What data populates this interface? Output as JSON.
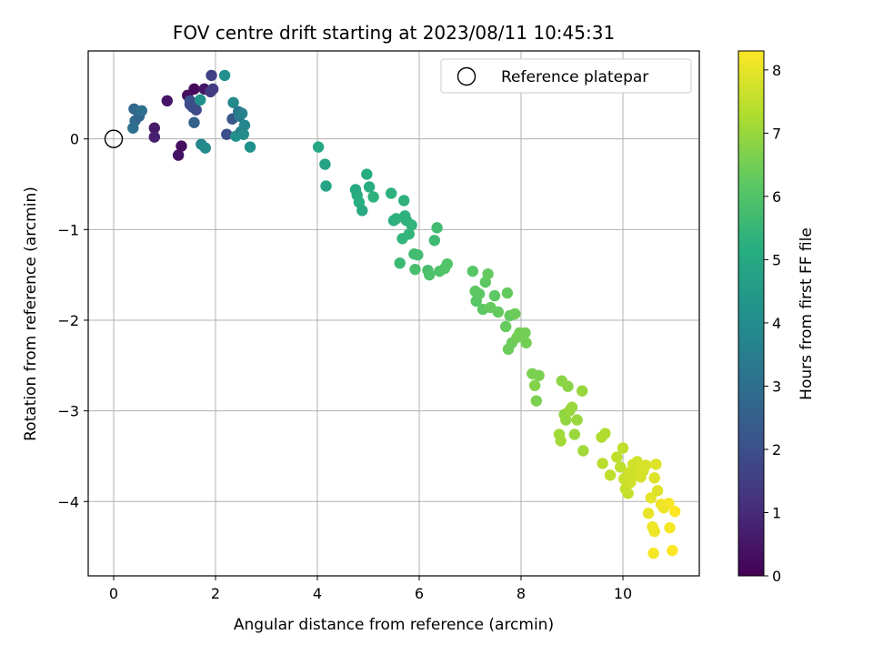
{
  "chart_data": {
    "type": "scatter",
    "title": "FOV centre drift starting at 2023/08/11 10:45:31",
    "xlabel": "Angular distance from reference (arcmin)",
    "ylabel": "Rotation from reference (arcmin)",
    "xlim": [
      -0.5,
      11.5
    ],
    "ylim": [
      -4.82,
      0.97
    ],
    "xticks": [
      0,
      2,
      4,
      6,
      8,
      10
    ],
    "yticks": [
      -4,
      -3,
      -2,
      -1,
      0
    ],
    "grid": true,
    "legend": {
      "location": "upper right",
      "entries": [
        "Reference platepar"
      ]
    },
    "reference_point": {
      "x": 0,
      "y": 0
    },
    "colorbar": {
      "label": "Hours from first FF file",
      "min": 0,
      "max": 8.3,
      "ticks": [
        0,
        1,
        2,
        3,
        4,
        5,
        6,
        7,
        8
      ],
      "colormap": "viridis"
    },
    "points": [
      {
        "x": 1.58,
        "y": 0.55,
        "t": 0.2
      },
      {
        "x": 1.05,
        "y": 0.42,
        "t": 0.5
      },
      {
        "x": 1.27,
        "y": -0.18,
        "t": 0.4
      },
      {
        "x": 1.33,
        "y": -0.08,
        "t": 0.3
      },
      {
        "x": 0.8,
        "y": 0.12,
        "t": 0.6
      },
      {
        "x": 0.8,
        "y": 0.02,
        "t": 0.7
      },
      {
        "x": 1.45,
        "y": 0.48,
        "t": 0.3
      },
      {
        "x": 1.78,
        "y": 0.55,
        "t": 0.5
      },
      {
        "x": 1.9,
        "y": 0.52,
        "t": 1.4
      },
      {
        "x": 1.92,
        "y": 0.7,
        "t": 1.6
      },
      {
        "x": 1.95,
        "y": 0.55,
        "t": 1.5
      },
      {
        "x": 1.5,
        "y": 0.38,
        "t": 1.8
      },
      {
        "x": 1.55,
        "y": 0.35,
        "t": 1.9
      },
      {
        "x": 1.62,
        "y": 0.32,
        "t": 1.9
      },
      {
        "x": 1.58,
        "y": 0.18,
        "t": 2.6
      },
      {
        "x": 1.5,
        "y": 0.42,
        "t": 2.0
      },
      {
        "x": 1.7,
        "y": 0.43,
        "t": 4.2
      },
      {
        "x": 1.72,
        "y": -0.06,
        "t": 3.8
      },
      {
        "x": 1.8,
        "y": -0.1,
        "t": 3.9
      },
      {
        "x": 2.18,
        "y": 0.7,
        "t": 4.1
      },
      {
        "x": 2.22,
        "y": 0.05,
        "t": 2.0
      },
      {
        "x": 2.33,
        "y": 0.22,
        "t": 2.2
      },
      {
        "x": 2.35,
        "y": 0.4,
        "t": 3.9
      },
      {
        "x": 2.4,
        "y": 0.03,
        "t": 4.2
      },
      {
        "x": 2.45,
        "y": 0.3,
        "t": 3.2
      },
      {
        "x": 2.47,
        "y": 0.25,
        "t": 3.3
      },
      {
        "x": 2.5,
        "y": 0.08,
        "t": 3.6
      },
      {
        "x": 2.52,
        "y": 0.28,
        "t": 3.6
      },
      {
        "x": 2.55,
        "y": 0.05,
        "t": 4.0
      },
      {
        "x": 2.57,
        "y": 0.15,
        "t": 3.8
      },
      {
        "x": 2.68,
        "y": -0.09,
        "t": 4.2
      },
      {
        "x": 0.4,
        "y": 0.33,
        "t": 2.8
      },
      {
        "x": 0.42,
        "y": 0.2,
        "t": 2.9
      },
      {
        "x": 0.38,
        "y": 0.12,
        "t": 3.0
      },
      {
        "x": 0.5,
        "y": 0.25,
        "t": 2.7
      },
      {
        "x": 0.55,
        "y": 0.31,
        "t": 3.0
      },
      {
        "x": 4.02,
        "y": -0.09,
        "t": 4.9
      },
      {
        "x": 4.15,
        "y": -0.28,
        "t": 4.8
      },
      {
        "x": 4.17,
        "y": -0.52,
        "t": 4.8
      },
      {
        "x": 4.75,
        "y": -0.56,
        "t": 5.0
      },
      {
        "x": 4.78,
        "y": -0.62,
        "t": 5.1
      },
      {
        "x": 4.82,
        "y": -0.7,
        "t": 5.2
      },
      {
        "x": 4.88,
        "y": -0.79,
        "t": 5.0
      },
      {
        "x": 4.97,
        "y": -0.39,
        "t": 5.1
      },
      {
        "x": 5.02,
        "y": -0.53,
        "t": 5.2
      },
      {
        "x": 5.1,
        "y": -0.64,
        "t": 5.3
      },
      {
        "x": 5.45,
        "y": -0.6,
        "t": 5.3
      },
      {
        "x": 5.5,
        "y": -0.9,
        "t": 5.2
      },
      {
        "x": 5.55,
        "y": -0.88,
        "t": 5.3
      },
      {
        "x": 5.62,
        "y": -1.37,
        "t": 5.6
      },
      {
        "x": 5.67,
        "y": -1.1,
        "t": 5.4
      },
      {
        "x": 5.7,
        "y": -0.68,
        "t": 5.3
      },
      {
        "x": 5.72,
        "y": -0.85,
        "t": 5.3
      },
      {
        "x": 5.75,
        "y": -0.9,
        "t": 5.3
      },
      {
        "x": 5.8,
        "y": -1.05,
        "t": 5.4
      },
      {
        "x": 5.85,
        "y": -0.95,
        "t": 5.4
      },
      {
        "x": 5.9,
        "y": -1.27,
        "t": 5.7
      },
      {
        "x": 5.92,
        "y": -1.44,
        "t": 5.8
      },
      {
        "x": 5.97,
        "y": -1.28,
        "t": 5.7
      },
      {
        "x": 6.17,
        "y": -1.45,
        "t": 5.8
      },
      {
        "x": 6.2,
        "y": -1.5,
        "t": 5.9
      },
      {
        "x": 6.3,
        "y": -1.12,
        "t": 5.6
      },
      {
        "x": 6.35,
        "y": -0.98,
        "t": 5.7
      },
      {
        "x": 6.4,
        "y": -1.46,
        "t": 5.9
      },
      {
        "x": 6.5,
        "y": -1.43,
        "t": 6.0
      },
      {
        "x": 6.55,
        "y": -1.38,
        "t": 6.0
      },
      {
        "x": 7.05,
        "y": -1.46,
        "t": 6.1
      },
      {
        "x": 7.1,
        "y": -1.68,
        "t": 6.2
      },
      {
        "x": 7.12,
        "y": -1.79,
        "t": 6.1
      },
      {
        "x": 7.18,
        "y": -1.71,
        "t": 6.2
      },
      {
        "x": 7.25,
        "y": -1.88,
        "t": 6.2
      },
      {
        "x": 7.3,
        "y": -1.58,
        "t": 6.2
      },
      {
        "x": 7.35,
        "y": -1.49,
        "t": 6.3
      },
      {
        "x": 7.4,
        "y": -1.86,
        "t": 6.3
      },
      {
        "x": 7.48,
        "y": -1.73,
        "t": 6.2
      },
      {
        "x": 7.55,
        "y": -1.91,
        "t": 6.3
      },
      {
        "x": 7.7,
        "y": -2.07,
        "t": 6.3
      },
      {
        "x": 7.73,
        "y": -1.7,
        "t": 6.3
      },
      {
        "x": 7.75,
        "y": -2.32,
        "t": 6.4
      },
      {
        "x": 7.78,
        "y": -1.95,
        "t": 6.3
      },
      {
        "x": 7.82,
        "y": -2.25,
        "t": 6.4
      },
      {
        "x": 7.88,
        "y": -1.93,
        "t": 6.4
      },
      {
        "x": 7.92,
        "y": -2.19,
        "t": 6.5
      },
      {
        "x": 7.97,
        "y": -2.14,
        "t": 6.5
      },
      {
        "x": 8.08,
        "y": -2.14,
        "t": 6.5
      },
      {
        "x": 8.1,
        "y": -2.25,
        "t": 6.5
      },
      {
        "x": 8.22,
        "y": -2.59,
        "t": 6.6
      },
      {
        "x": 8.27,
        "y": -2.72,
        "t": 6.7
      },
      {
        "x": 8.3,
        "y": -2.89,
        "t": 6.6
      },
      {
        "x": 8.35,
        "y": -2.61,
        "t": 6.6
      },
      {
        "x": 8.8,
        "y": -2.67,
        "t": 6.8
      },
      {
        "x": 8.85,
        "y": -3.04,
        "t": 6.9
      },
      {
        "x": 8.88,
        "y": -3.1,
        "t": 6.9
      },
      {
        "x": 8.92,
        "y": -2.73,
        "t": 6.8
      },
      {
        "x": 8.95,
        "y": -3.0,
        "t": 7.0
      },
      {
        "x": 9.0,
        "y": -2.96,
        "t": 7.0
      },
      {
        "x": 9.05,
        "y": -3.26,
        "t": 7.0
      },
      {
        "x": 9.1,
        "y": -3.1,
        "t": 7.0
      },
      {
        "x": 9.2,
        "y": -2.78,
        "t": 7.0
      },
      {
        "x": 9.22,
        "y": -3.44,
        "t": 7.1
      },
      {
        "x": 8.75,
        "y": -3.26,
        "t": 7.1
      },
      {
        "x": 8.78,
        "y": -3.33,
        "t": 7.1
      },
      {
        "x": 9.58,
        "y": -3.29,
        "t": 7.3
      },
      {
        "x": 9.65,
        "y": -3.25,
        "t": 7.3
      },
      {
        "x": 9.6,
        "y": -3.58,
        "t": 7.4
      },
      {
        "x": 9.75,
        "y": -3.71,
        "t": 7.5
      },
      {
        "x": 9.88,
        "y": -3.51,
        "t": 7.5
      },
      {
        "x": 9.95,
        "y": -3.62,
        "t": 7.5
      },
      {
        "x": 10.0,
        "y": -3.41,
        "t": 7.5
      },
      {
        "x": 10.02,
        "y": -3.75,
        "t": 7.6
      },
      {
        "x": 10.05,
        "y": -3.86,
        "t": 7.6
      },
      {
        "x": 10.1,
        "y": -3.91,
        "t": 7.6
      },
      {
        "x": 10.12,
        "y": -3.68,
        "t": 7.7
      },
      {
        "x": 10.15,
        "y": -3.79,
        "t": 7.7
      },
      {
        "x": 10.2,
        "y": -3.59,
        "t": 7.7
      },
      {
        "x": 10.25,
        "y": -3.71,
        "t": 7.7
      },
      {
        "x": 10.28,
        "y": -3.56,
        "t": 7.7
      },
      {
        "x": 10.32,
        "y": -3.63,
        "t": 7.8
      },
      {
        "x": 10.35,
        "y": -3.73,
        "t": 7.8
      },
      {
        "x": 10.4,
        "y": -3.66,
        "t": 7.8
      },
      {
        "x": 10.45,
        "y": -3.6,
        "t": 7.8
      },
      {
        "x": 10.5,
        "y": -4.13,
        "t": 8.0
      },
      {
        "x": 10.55,
        "y": -3.96,
        "t": 8.0
      },
      {
        "x": 10.58,
        "y": -4.28,
        "t": 8.1
      },
      {
        "x": 10.6,
        "y": -4.57,
        "t": 8.2
      },
      {
        "x": 10.62,
        "y": -3.74,
        "t": 7.9
      },
      {
        "x": 10.65,
        "y": -3.59,
        "t": 7.9
      },
      {
        "x": 10.68,
        "y": -3.88,
        "t": 7.9
      },
      {
        "x": 10.62,
        "y": -4.33,
        "t": 8.1
      },
      {
        "x": 10.75,
        "y": -4.03,
        "t": 8.1
      },
      {
        "x": 10.8,
        "y": -4.07,
        "t": 8.1
      },
      {
        "x": 10.9,
        "y": -4.02,
        "t": 8.2
      },
      {
        "x": 10.92,
        "y": -4.29,
        "t": 8.2
      },
      {
        "x": 10.97,
        "y": -4.54,
        "t": 8.3
      },
      {
        "x": 11.02,
        "y": -4.11,
        "t": 8.3
      }
    ]
  }
}
